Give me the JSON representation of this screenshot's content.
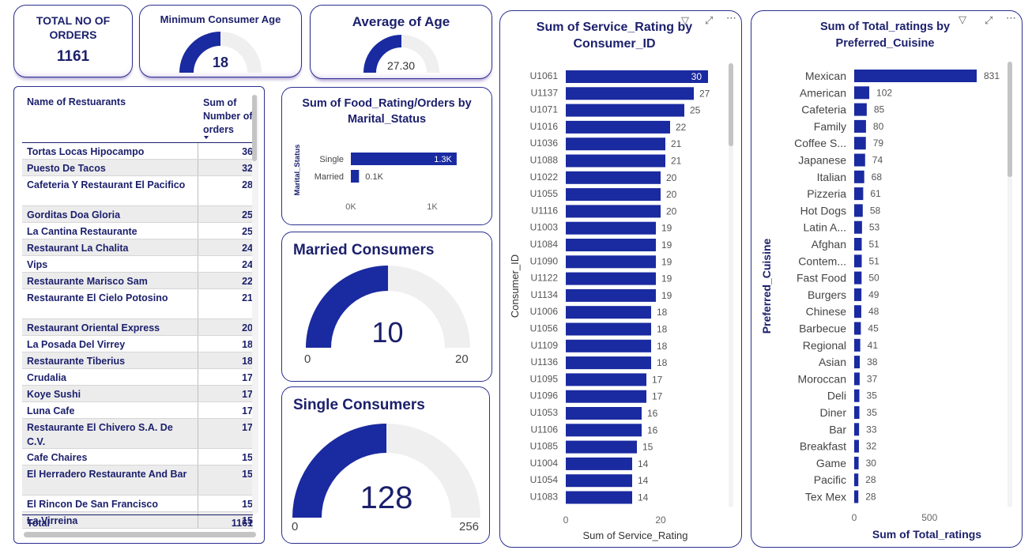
{
  "kpis": {
    "total_orders": {
      "title": "TOTAL NO OF ORDERS",
      "value": "1161"
    },
    "min_age": {
      "title": "Minimum Consumer Age",
      "value": "18",
      "fraction": 0.5
    },
    "avg_age": {
      "title": "Average of Age",
      "value": "27.30",
      "fraction": 0.5
    }
  },
  "restaurant_table": {
    "col_name": "Name of Restuarants",
    "col_sum": "Sum of Number of orders",
    "rows": [
      {
        "name": "Tortas Locas Hipocampo",
        "value": "36"
      },
      {
        "name": "Puesto De Tacos",
        "value": "32"
      },
      {
        "name": "Cafeteria Y Restaurant El Pacifico",
        "value": "28"
      },
      {
        "name": "Gorditas Doa Gloria",
        "value": "25"
      },
      {
        "name": "La Cantina Restaurante",
        "value": "25"
      },
      {
        "name": "Restaurant La Chalita",
        "value": "24"
      },
      {
        "name": "Vips",
        "value": "24"
      },
      {
        "name": "Restaurante Marisco Sam",
        "value": "22"
      },
      {
        "name": "Restaurante El Cielo Potosino",
        "value": "21"
      },
      {
        "name": "Restaurant Oriental Express",
        "value": "20"
      },
      {
        "name": "La Posada Del Virrey",
        "value": "18"
      },
      {
        "name": "Restaurante Tiberius",
        "value": "18"
      },
      {
        "name": "Crudalia",
        "value": "17"
      },
      {
        "name": "Koye Sushi",
        "value": "17"
      },
      {
        "name": "Luna Cafe",
        "value": "17"
      },
      {
        "name": "Restaurante El Chivero S.A. De C.V.",
        "value": "17"
      },
      {
        "name": "Cafe Chaires",
        "value": "15"
      },
      {
        "name": "El Herradero Restaurante And Bar",
        "value": "15"
      },
      {
        "name": "El Rincon De San Francisco",
        "value": "15"
      },
      {
        "name": "La Virreina",
        "value": "15"
      }
    ],
    "total_label": "Total",
    "total_value": "1161"
  },
  "food_rating": {
    "title": "Sum of Food_Rating/Orders by Marital_Status",
    "axis_title": "Marital_Status",
    "ticks": [
      "0K",
      "1K"
    ]
  },
  "married_gauge": {
    "title": "Married Consumers",
    "value": "10",
    "min": "0",
    "max": "20"
  },
  "single_gauge": {
    "title": "Single Consumers",
    "value": "128",
    "min": "0",
    "max": "256"
  },
  "service_rating": {
    "title": "Sum of Service_Rating by Consumer_ID",
    "xlabel": "Sum of Service_Rating",
    "ylabel": "Consumer_ID"
  },
  "cuisine_ratings": {
    "title": "Sum of Total_ratings by Preferred_Cuisine",
    "xlabel": "Sum of Total_ratings",
    "ylabel": "Preferred_Cuisine"
  },
  "colors": {
    "bar": "#1a2aa0",
    "gauge_fill": "#1a2aa0",
    "gauge_bg": "#efefef",
    "title": "#1b1f6b"
  },
  "icons": [
    "filter-icon",
    "focus-mode-icon",
    "more-options-icon"
  ],
  "chart_data": [
    {
      "type": "bar",
      "title": "Sum of Food_Rating/Orders by Marital_Status",
      "categories": [
        "Single",
        "Married"
      ],
      "values": [
        1300,
        100
      ],
      "labels": [
        "1.3K",
        "0.1K"
      ],
      "xlim": [
        0,
        1600
      ],
      "ylabel": "Marital_Status"
    },
    {
      "type": "bar",
      "title": "Sum of Service_Rating by Consumer_ID",
      "categories": [
        "U1061",
        "U1137",
        "U1071",
        "U1016",
        "U1036",
        "U1088",
        "U1022",
        "U1055",
        "U1116",
        "U1003",
        "U1084",
        "U1090",
        "U1122",
        "U1134",
        "U1006",
        "U1056",
        "U1109",
        "U1136",
        "U1095",
        "U1096",
        "U1053",
        "U1106",
        "U1085",
        "U1004",
        "U1054",
        "U1083"
      ],
      "values": [
        30,
        27,
        25,
        22,
        21,
        21,
        20,
        20,
        20,
        19,
        19,
        19,
        19,
        19,
        18,
        18,
        18,
        18,
        17,
        17,
        16,
        16,
        15,
        14,
        14,
        14
      ],
      "xlim": [
        0,
        30
      ],
      "xticks": [
        "0",
        "20"
      ],
      "xlabel": "Sum of Service_Rating",
      "ylabel": "Consumer_ID"
    },
    {
      "type": "bar",
      "title": "Sum of Total_ratings by Preferred_Cuisine",
      "categories": [
        "Mexican",
        "American",
        "Cafeteria",
        "Family",
        "Coffee S...",
        "Japanese",
        "Italian",
        "Pizzeria",
        "Hot Dogs",
        "Latin A...",
        "Afghan",
        "Contem...",
        "Fast Food",
        "Burgers",
        "Chinese",
        "Barbecue",
        "Regional",
        "Asian",
        "Moroccan",
        "Deli",
        "Diner",
        "Bar",
        "Breakfast",
        "Game",
        "Pacific",
        "Tex Mex"
      ],
      "values": [
        831,
        102,
        85,
        80,
        79,
        74,
        68,
        61,
        58,
        53,
        51,
        51,
        50,
        49,
        48,
        45,
        41,
        38,
        37,
        35,
        35,
        33,
        32,
        30,
        28,
        28
      ],
      "xlim": [
        0,
        831
      ],
      "xticks": [
        "0",
        "500"
      ],
      "xlabel": "Sum of Total_ratings",
      "ylabel": "Preferred_Cuisine"
    }
  ]
}
